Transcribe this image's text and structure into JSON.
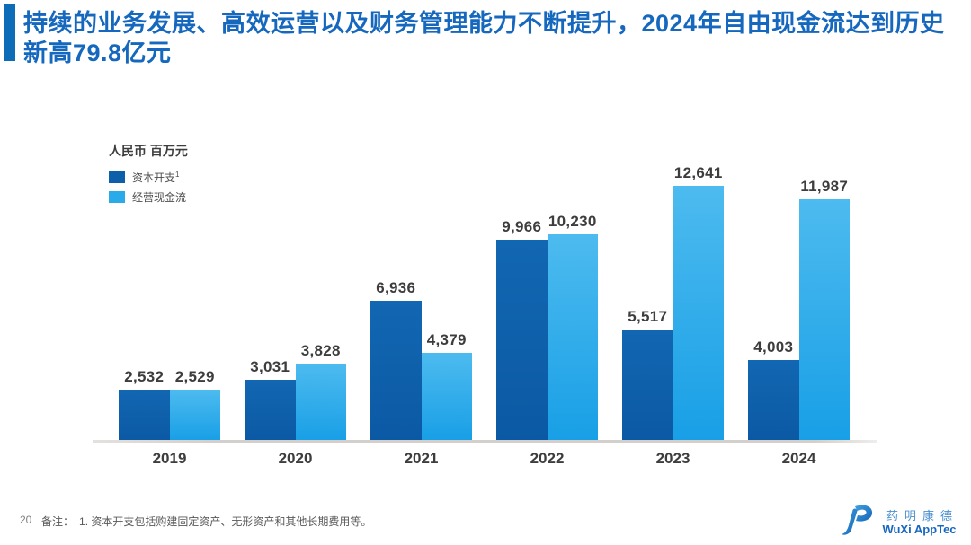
{
  "header": {
    "title": "持续的业务发展、高效运营以及财务管理能力不断提升，2024年自由现金流达到历史新高79.8亿元"
  },
  "chart_data": {
    "type": "bar",
    "title": "",
    "unit_label": "人民币 百万元",
    "categories": [
      "2019",
      "2020",
      "2021",
      "2022",
      "2023",
      "2024"
    ],
    "series": [
      {
        "name": "资本开支",
        "footnote_ref": "1",
        "color": "#0e5fa9",
        "values": [
          2532,
          3031,
          6936,
          9966,
          5517,
          4003
        ]
      },
      {
        "name": "经营现金流",
        "footnote_ref": "",
        "color": "#29abe9",
        "values": [
          2529,
          3828,
          4379,
          10230,
          12641,
          11987
        ]
      }
    ],
    "ylim": [
      0,
      12641
    ],
    "grid": false,
    "legend_position": "top-left",
    "value_labels_shown": true
  },
  "footer": {
    "page_number": "20",
    "note_label": "备注：",
    "note": "1. 资本开支包括购建固定资产、无形资产和其他长期费用等。"
  },
  "logo": {
    "cn": "药明康德",
    "en": "WuXi AppTec"
  },
  "colors": {
    "title_accent": "#0d6cb7",
    "title_text": "#1568be",
    "capex_bar": "#0e5fa9",
    "ocf_bar": "#29abe9",
    "label_text": "#3d3d3d",
    "axis_line": "#d2cfcc",
    "logo_blue": "#1767c0"
  }
}
